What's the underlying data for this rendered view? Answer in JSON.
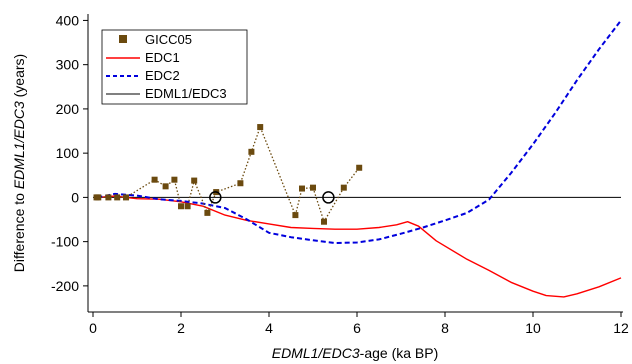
{
  "chart_data": {
    "type": "line",
    "xlabel": {
      "italic": "EDML1/EDC3",
      "suffix": "-age  (ka BP)"
    },
    "ylabel": {
      "prefix": "Difference to ",
      "italic": "EDML1/EDC3",
      "suffix": "  (years)"
    },
    "xlim": [
      0,
      12
    ],
    "ylim": [
      -250,
      410
    ],
    "xticks": [
      "0",
      "2",
      "4",
      "6",
      "8",
      "10",
      "12"
    ],
    "yticks": [
      "-200",
      "-100",
      "0",
      "100",
      "200",
      "300",
      "400"
    ],
    "grid": false,
    "legend_position": "top-left",
    "series": [
      {
        "name": "GICC05",
        "color": "#6b4a0f",
        "style": "dotted-with-square-markers",
        "points": [
          [
            0.08,
            0
          ],
          [
            0.12,
            0
          ],
          [
            0.35,
            0
          ],
          [
            0.55,
            0
          ],
          [
            0.75,
            0
          ],
          [
            1.4,
            40
          ],
          [
            1.65,
            25
          ],
          [
            1.85,
            40
          ],
          [
            2.0,
            -20
          ],
          [
            2.15,
            -20
          ],
          [
            2.3,
            38
          ],
          [
            2.6,
            -35
          ],
          [
            2.8,
            12
          ],
          [
            3.35,
            32
          ],
          [
            3.6,
            103
          ],
          [
            3.8,
            159
          ],
          [
            4.6,
            -40
          ],
          [
            4.75,
            20
          ],
          [
            5.0,
            22
          ],
          [
            5.25,
            -55
          ],
          [
            5.7,
            22
          ],
          [
            6.05,
            67
          ]
        ]
      },
      {
        "name": "EDC1",
        "color": "#ff0000",
        "style": "solid",
        "points": [
          [
            0.1,
            0
          ],
          [
            0.5,
            3
          ],
          [
            1.0,
            -3
          ],
          [
            1.5,
            -4
          ],
          [
            2.0,
            -10
          ],
          [
            2.5,
            -20
          ],
          [
            3.0,
            -40
          ],
          [
            3.5,
            -52
          ],
          [
            4.0,
            -60
          ],
          [
            4.5,
            -68
          ],
          [
            5.0,
            -70
          ],
          [
            5.5,
            -72
          ],
          [
            6.0,
            -72
          ],
          [
            6.5,
            -68
          ],
          [
            6.9,
            -62
          ],
          [
            7.15,
            -55
          ],
          [
            7.4,
            -65
          ],
          [
            7.8,
            -98
          ],
          [
            8.5,
            -140
          ],
          [
            9.0,
            -165
          ],
          [
            9.5,
            -192
          ],
          [
            10.0,
            -212
          ],
          [
            10.3,
            -222
          ],
          [
            10.7,
            -225
          ],
          [
            11.0,
            -218
          ],
          [
            11.5,
            -202
          ],
          [
            12.0,
            -182
          ]
        ]
      },
      {
        "name": "EDC2",
        "color": "#0000dd",
        "style": "dashed",
        "points": [
          [
            0.1,
            0
          ],
          [
            0.5,
            8
          ],
          [
            1.0,
            4
          ],
          [
            1.5,
            -4
          ],
          [
            2.0,
            -8
          ],
          [
            2.5,
            -14
          ],
          [
            3.0,
            -24
          ],
          [
            3.5,
            -50
          ],
          [
            4.0,
            -80
          ],
          [
            4.5,
            -90
          ],
          [
            5.0,
            -97
          ],
          [
            5.5,
            -103
          ],
          [
            6.0,
            -102
          ],
          [
            6.5,
            -95
          ],
          [
            7.0,
            -82
          ],
          [
            7.5,
            -68
          ],
          [
            8.0,
            -52
          ],
          [
            8.5,
            -35
          ],
          [
            9.0,
            -5
          ],
          [
            9.5,
            55
          ],
          [
            10.0,
            120
          ],
          [
            10.5,
            190
          ],
          [
            11.0,
            265
          ],
          [
            11.5,
            335
          ],
          [
            12.0,
            400
          ]
        ]
      },
      {
        "name": "EDML1/EDC3",
        "color": "#000000",
        "style": "solid",
        "points": [
          [
            0,
            0
          ],
          [
            12,
            0
          ]
        ]
      }
    ],
    "open_circle_markers": [
      [
        2.78,
        0
      ],
      [
        5.35,
        0
      ]
    ]
  }
}
